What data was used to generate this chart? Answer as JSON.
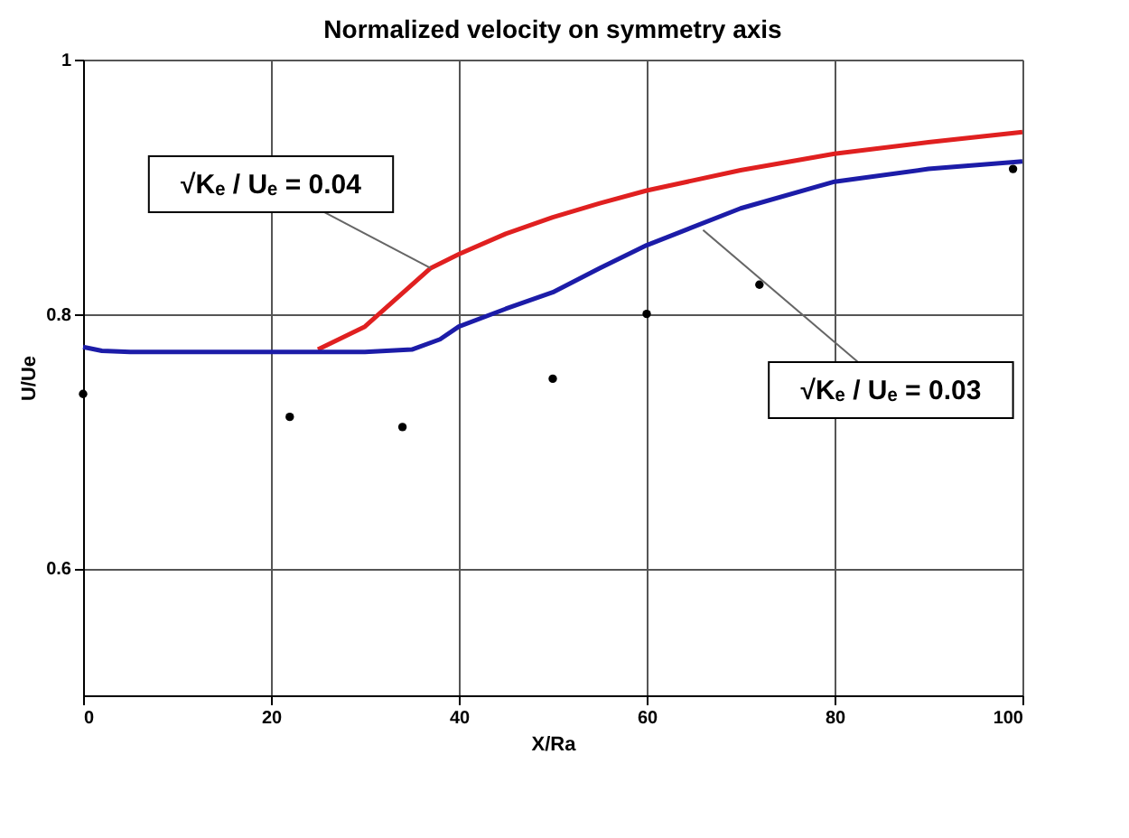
{
  "chart_data": {
    "type": "line",
    "title": "Normalized velocity on symmetry axis",
    "xlabel": "X/Ra",
    "ylabel": "U/Ue",
    "xlim": [
      0,
      100
    ],
    "xticks": [
      0,
      20,
      40,
      60,
      80,
      100
    ],
    "ylim": [
      0.5,
      1
    ],
    "yticks": [
      0.6,
      0.8,
      1
    ],
    "grid": true,
    "marker": "none",
    "line_style": "solid",
    "series": [
      {
        "color": "#e02020",
        "x": [
          25,
          30,
          37,
          40,
          45,
          50,
          55,
          60,
          70,
          80,
          90,
          100
        ],
        "values": [
          0.772,
          0.79,
          0.836,
          0.847,
          0.863,
          0.876,
          0.887,
          0.897,
          0.913,
          0.926,
          0.935,
          0.943
        ]
      },
      {
        "color": "#1c1ca8",
        "x": [
          0,
          2,
          5,
          10,
          20,
          30,
          35,
          38,
          40,
          45,
          50,
          55,
          60,
          70,
          80,
          90,
          100
        ],
        "values": [
          0.774,
          0.771,
          0.77,
          0.77,
          0.77,
          0.77,
          0.772,
          0.78,
          0.79,
          0.804,
          0.817,
          0.836,
          0.854,
          0.883,
          0.904,
          0.914,
          0.92
        ]
      },
      {
        "type": "scatter",
        "color": "#000000",
        "marker": "circle",
        "x": [
          0,
          22,
          34,
          50,
          60,
          72,
          99
        ],
        "values": [
          0.737,
          0.719,
          0.711,
          0.749,
          0.8,
          0.823,
          0.914
        ]
      }
    ],
    "annotations": [
      {
        "text": "√Kₑ / Uₑ = 0.04",
        "x": 37,
        "y": 0.836
      },
      {
        "text": "√Kₑ / Uₑ = 0.03",
        "x": 66,
        "y": 0.866
      }
    ]
  }
}
